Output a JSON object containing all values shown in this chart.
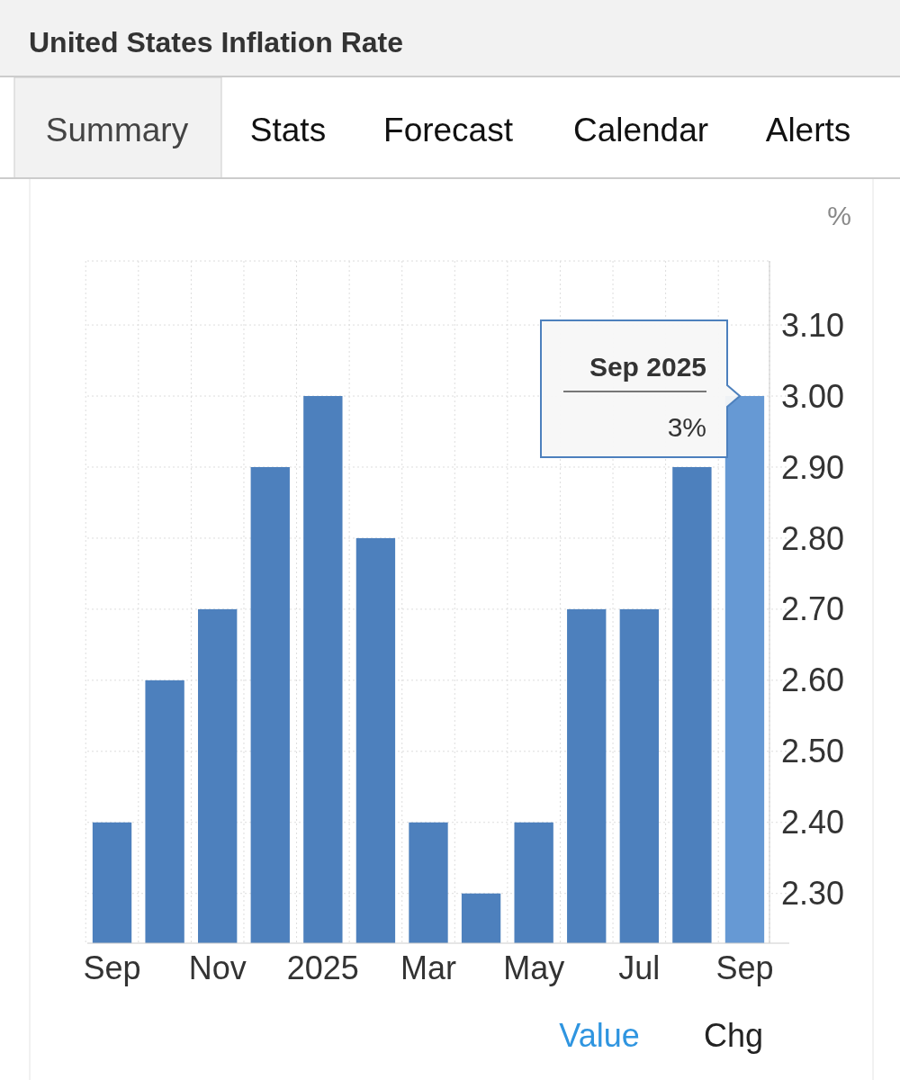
{
  "chart_data": {
    "type": "bar",
    "title": "United States Inflation Rate",
    "ylabel": "%",
    "categories": [
      "Sep",
      null,
      "Nov",
      null,
      "2025",
      null,
      "Mar",
      null,
      "May",
      null,
      "Jul",
      null,
      "Sep"
    ],
    "values": [
      2.4,
      2.6,
      2.7,
      2.9,
      3.0,
      2.8,
      2.4,
      2.3,
      2.4,
      2.7,
      2.7,
      2.9,
      3.0
    ],
    "colors": [
      "#4d80bd",
      "#4d80bd",
      "#4d80bd",
      "#4d80bd",
      "#4d80bd",
      "#4d80bd",
      "#4d80bd",
      "#4d80bd",
      "#4d80bd",
      "#4d80bd",
      "#4d80bd",
      "#4d80bd",
      "#6699d4"
    ],
    "ylim": [
      2.23,
      3.19
    ],
    "yticks": [
      {
        "value": 2.3,
        "label": "2.30"
      },
      {
        "value": 2.4,
        "label": "2.40"
      },
      {
        "value": 2.5,
        "label": "2.50"
      },
      {
        "value": 2.6,
        "label": "2.60"
      },
      {
        "value": 2.7,
        "label": "2.70"
      },
      {
        "value": 2.8,
        "label": "2.80"
      },
      {
        "value": 2.9,
        "label": "2.90"
      },
      {
        "value": 3.0,
        "label": "3.00"
      },
      {
        "value": 3.1,
        "label": "3.10"
      }
    ],
    "grid": true,
    "annotations": [
      "Summary",
      "Stats",
      "Forecast",
      "Calendar",
      "Alerts",
      "Sep 2025",
      "3%",
      "Value",
      "Chg"
    ]
  }
}
